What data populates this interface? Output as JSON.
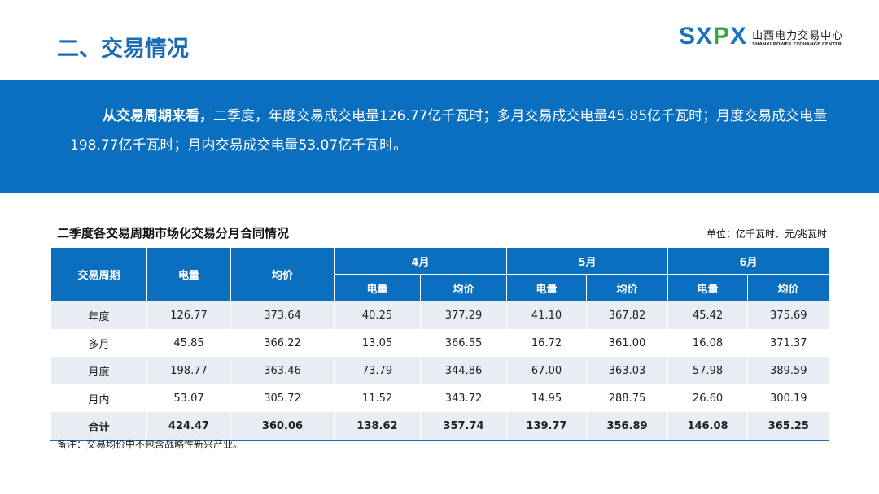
{
  "header": {
    "title": "二、交易情况",
    "logo": {
      "mark": "SXPX",
      "name_cn": "山西电力交易中心",
      "name_en": "SHANXI POWER EXCHANGE CENTER"
    }
  },
  "summary": {
    "lead": "从交易周期来看，",
    "text": "二季度，年度交易成交电量126.77亿千瓦时；多月交易成交电量45.85亿千瓦时；月度交易成交电量198.77亿千瓦时；月内交易成交电量53.07亿千瓦时。"
  },
  "table": {
    "title": "二季度各交易周期市场化交易分月合同情况",
    "unit": "单位：亿千瓦时、元/兆瓦时",
    "headers": {
      "period": "交易周期",
      "energy": "电量",
      "price": "均价",
      "months": [
        "4月",
        "5月",
        "6月"
      ],
      "sub": [
        "电量",
        "均价"
      ]
    },
    "rows": [
      [
        "年度",
        "126.77",
        "373.64",
        "40.25",
        "377.29",
        "41.10",
        "367.82",
        "45.42",
        "375.69"
      ],
      [
        "多月",
        "45.85",
        "366.22",
        "13.05",
        "366.55",
        "16.72",
        "361.00",
        "16.08",
        "371.37"
      ],
      [
        "月度",
        "198.77",
        "363.46",
        "73.79",
        "344.86",
        "67.00",
        "363.03",
        "57.98",
        "389.59"
      ],
      [
        "月内",
        "53.07",
        "305.72",
        "11.52",
        "343.72",
        "14.95",
        "288.75",
        "26.60",
        "300.19"
      ]
    ],
    "total": [
      "合计",
      "424.47",
      "360.06",
      "138.62",
      "357.74",
      "139.77",
      "356.89",
      "146.08",
      "365.25"
    ]
  },
  "note": "备注：交易均价中不包含战略性新兴产业。",
  "colors": {
    "brand_blue": "#0b6fbf",
    "title_blue": "#1b6cb5",
    "logo_green": "#3aa64a",
    "row_stripe": "#e8ecf3"
  }
}
